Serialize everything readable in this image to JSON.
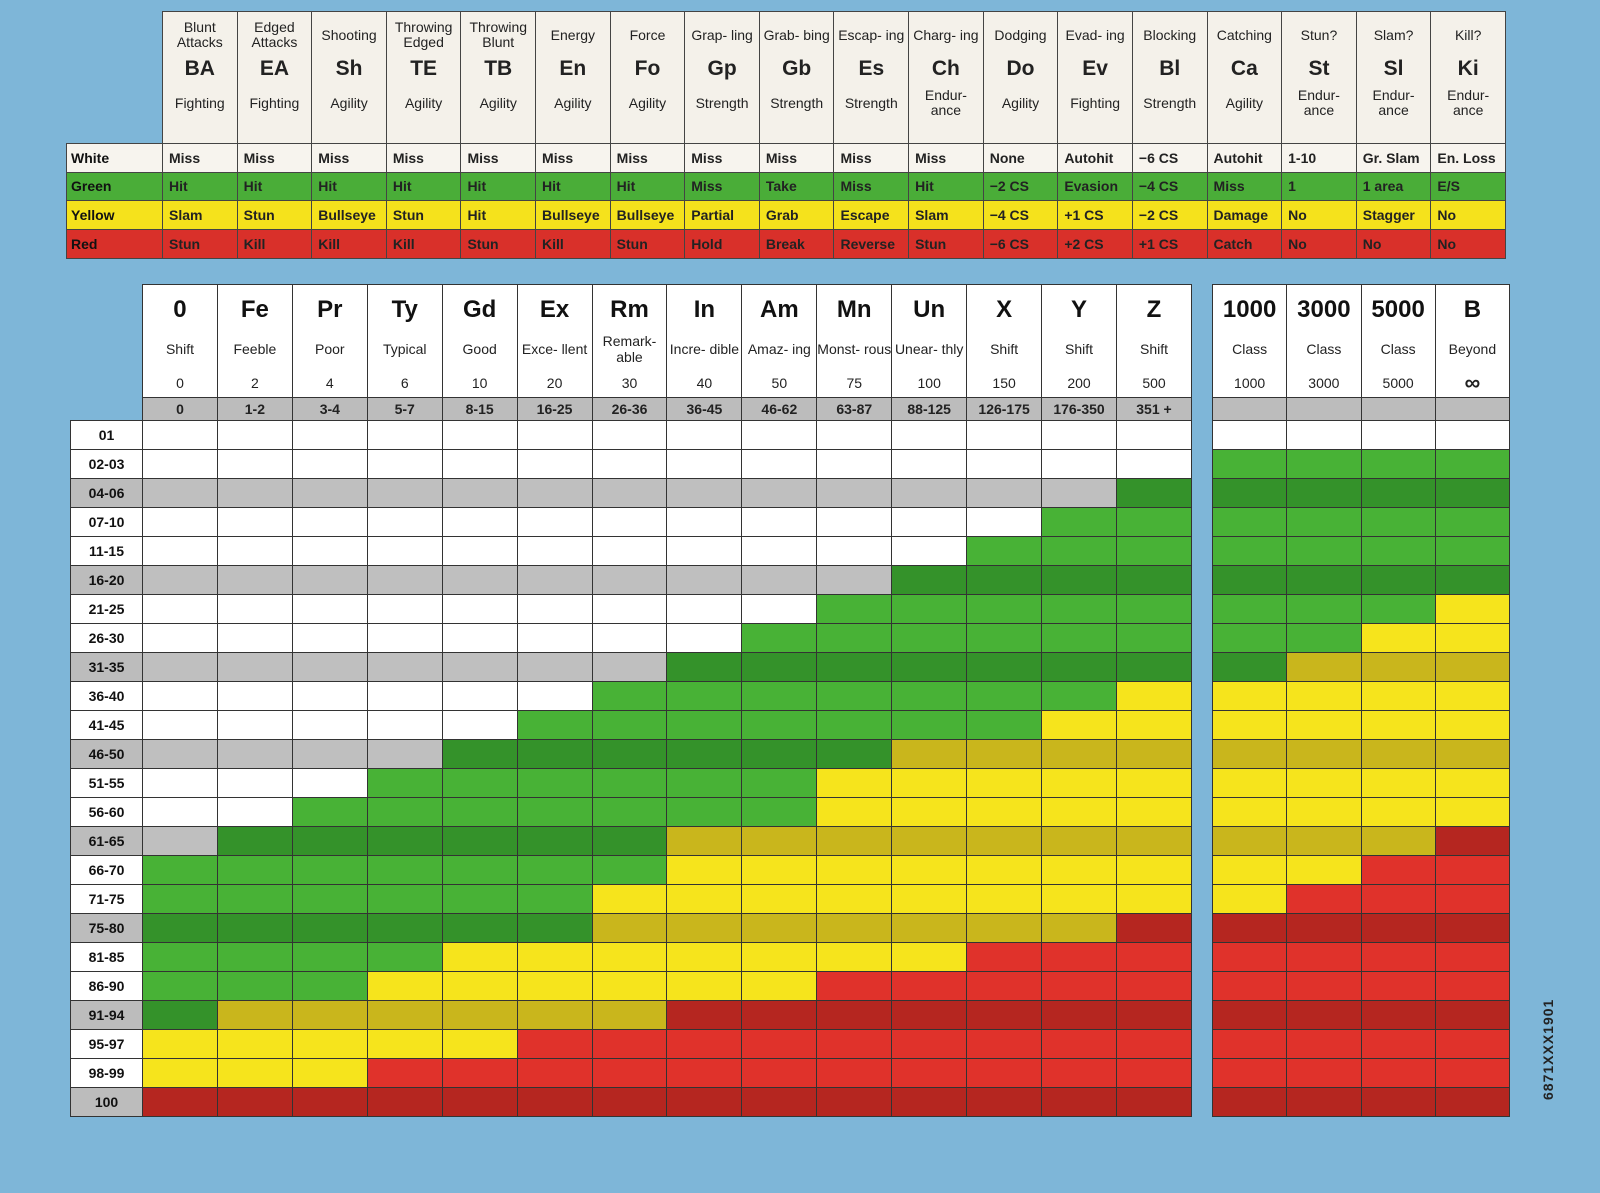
{
  "actions": [
    {
      "name": "Blunt Attacks",
      "abbr": "BA",
      "ability": "Fighting",
      "white": "Miss",
      "green": "Hit",
      "yellow": "Slam",
      "red": "Stun"
    },
    {
      "name": "Edged Attacks",
      "abbr": "EA",
      "ability": "Fighting",
      "white": "Miss",
      "green": "Hit",
      "yellow": "Stun",
      "red": "Kill"
    },
    {
      "name": "Shooting",
      "abbr": "Sh",
      "ability": "Agility",
      "white": "Miss",
      "green": "Hit",
      "yellow": "Bullseye",
      "red": "Kill"
    },
    {
      "name": "Throwing Edged",
      "abbr": "TE",
      "ability": "Agility",
      "white": "Miss",
      "green": "Hit",
      "yellow": "Stun",
      "red": "Kill"
    },
    {
      "name": "Throwing Blunt",
      "abbr": "TB",
      "ability": "Agility",
      "white": "Miss",
      "green": "Hit",
      "yellow": "Hit",
      "red": "Stun"
    },
    {
      "name": "Energy",
      "abbr": "En",
      "ability": "Agility",
      "white": "Miss",
      "green": "Hit",
      "yellow": "Bullseye",
      "red": "Kill"
    },
    {
      "name": "Force",
      "abbr": "Fo",
      "ability": "Agility",
      "white": "Miss",
      "green": "Hit",
      "yellow": "Bullseye",
      "red": "Stun"
    },
    {
      "name": "Grap- ling",
      "abbr": "Gp",
      "ability": "Strength",
      "white": "Miss",
      "green": "Miss",
      "yellow": "Partial",
      "red": "Hold"
    },
    {
      "name": "Grab- bing",
      "abbr": "Gb",
      "ability": "Strength",
      "white": "Miss",
      "green": "Take",
      "yellow": "Grab",
      "red": "Break"
    },
    {
      "name": "Escap- ing",
      "abbr": "Es",
      "ability": "Strength",
      "white": "Miss",
      "green": "Miss",
      "yellow": "Escape",
      "red": "Reverse"
    },
    {
      "name": "Charg- ing",
      "abbr": "Ch",
      "ability": "Endur- ance",
      "white": "Miss",
      "green": "Hit",
      "yellow": "Slam",
      "red": "Stun"
    },
    {
      "name": "Dodging",
      "abbr": "Do",
      "ability": "Agility",
      "white": "None",
      "green": "−2 CS",
      "yellow": "−4 CS",
      "red": "−6 CS"
    },
    {
      "name": "Evad- ing",
      "abbr": "Ev",
      "ability": "Fighting",
      "white": "Autohit",
      "green": "Evasion",
      "yellow": "+1 CS",
      "red": "+2 CS"
    },
    {
      "name": "Blocking",
      "abbr": "Bl",
      "ability": "Strength",
      "white": "−6 CS",
      "green": "−4 CS",
      "yellow": "−2 CS",
      "red": "+1 CS"
    },
    {
      "name": "Catching",
      "abbr": "Ca",
      "ability": "Agility",
      "white": "Autohit",
      "green": "Miss",
      "yellow": "Damage",
      "red": "Catch"
    },
    {
      "name": "Stun?",
      "abbr": "St",
      "ability": "Endur- ance",
      "white": "1-10",
      "green": "1",
      "yellow": "No",
      "red": "No"
    },
    {
      "name": "Slam?",
      "abbr": "Sl",
      "ability": "Endur- ance",
      "white": "Gr. Slam",
      "green": "1 area",
      "yellow": "Stagger",
      "red": "No"
    },
    {
      "name": "Kill?",
      "abbr": "Ki",
      "ability": "Endur- ance",
      "white": "En. Loss",
      "green": "E/S",
      "yellow": "No",
      "red": "No"
    }
  ],
  "result_rows": [
    "White",
    "Green",
    "Yellow",
    "Red"
  ],
  "ranks": [
    {
      "abbr": "0",
      "name": "Shift",
      "value": "0",
      "range": "0"
    },
    {
      "abbr": "Fe",
      "name": "Feeble",
      "value": "2",
      "range": "1-2"
    },
    {
      "abbr": "Pr",
      "name": "Poor",
      "value": "4",
      "range": "3-4"
    },
    {
      "abbr": "Ty",
      "name": "Typical",
      "value": "6",
      "range": "5-7"
    },
    {
      "abbr": "Gd",
      "name": "Good",
      "value": "10",
      "range": "8-15"
    },
    {
      "abbr": "Ex",
      "name": "Exce- llent",
      "value": "20",
      "range": "16-25"
    },
    {
      "abbr": "Rm",
      "name": "Remark- able",
      "value": "30",
      "range": "26-36"
    },
    {
      "abbr": "In",
      "name": "Incre- dible",
      "value": "40",
      "range": "36-45"
    },
    {
      "abbr": "Am",
      "name": "Amaz- ing",
      "value": "50",
      "range": "46-62"
    },
    {
      "abbr": "Mn",
      "name": "Monst- rous",
      "value": "75",
      "range": "63-87"
    },
    {
      "abbr": "Un",
      "name": "Unear- thly",
      "value": "100",
      "range": "88-125"
    },
    {
      "abbr": "X",
      "name": "Shift",
      "value": "150",
      "range": "126-175"
    },
    {
      "abbr": "Y",
      "name": "Shift",
      "value": "200",
      "range": "176-350"
    },
    {
      "abbr": "Z",
      "name": "Shift",
      "value": "500",
      "range": "351 +"
    }
  ],
  "class_ranks": [
    {
      "abbr": "1000",
      "name": "Class",
      "value": "1000"
    },
    {
      "abbr": "3000",
      "name": "Class",
      "value": "3000"
    },
    {
      "abbr": "5000",
      "name": "Class",
      "value": "5000"
    },
    {
      "abbr": "B",
      "name": "Beyond",
      "value": "∞"
    }
  ],
  "rolls": [
    "01",
    "02-03",
    "04-06",
    "07-10",
    "11-15",
    "16-20",
    "21-25",
    "26-30",
    "31-35",
    "36-40",
    "41-45",
    "46-50",
    "51-55",
    "56-60",
    "61-65",
    "66-70",
    "71-75",
    "75-80",
    "81-85",
    "86-90",
    "91-94",
    "95-97",
    "98-99",
    "100"
  ],
  "result_grid": [
    "wwwwwwwwwwwwww",
    "wwwwwwwwwwwwww",
    "wwwwwwwwwwwwwg",
    "wwwwwwwwwwwwgg",
    "wwwwwwwwwwwggg",
    "wwwwwwwwwwgggg",
    "wwwwwwwwwggggg",
    "wwwwwwwwgggggg",
    "wwwwwwwggggggg",
    "wwwwwwgggggggy",
    "wwwwwgggggggyy",
    "wwwwggggggyyyy",
    "wwwggggggyyyyy",
    "wwgggggggyyyyy",
    "wggggggyyyyyyy",
    "gggggggyyyyyyy",
    "ggggggyyyyyyyy",
    "ggggggyyyyyyyr",
    "ggggyyyyyyyrrr",
    "gggyyyyyyrrrrr",
    "gyyyyyyrrrrrrr",
    "yyyyyrrrrrrrrr",
    "yyyrrrrrrrrrrr",
    "rrrrrrrrrrrrrr"
  ],
  "class_grid": [
    "wwww",
    "gggg",
    "gggg",
    "gggg",
    "gggg",
    "gggg",
    "gggy",
    "ggyy",
    "gyyy",
    "yyyy",
    "yyyy",
    "yyyy",
    "yyyy",
    "yyyy",
    "yyyr",
    "yyrr",
    "yrrr",
    "rrrr",
    "rrrr",
    "rrrr",
    "rrrr",
    "rrrr",
    "rrrr",
    "rrrr"
  ],
  "colors": {
    "white": "#ffffff",
    "green": "#48b236",
    "yellow": "#f6e41c",
    "red": "#e0322b",
    "shaded": "#bcbcbc",
    "background": "#7eb6d8"
  },
  "catalog_number": "6871XXX1901"
}
